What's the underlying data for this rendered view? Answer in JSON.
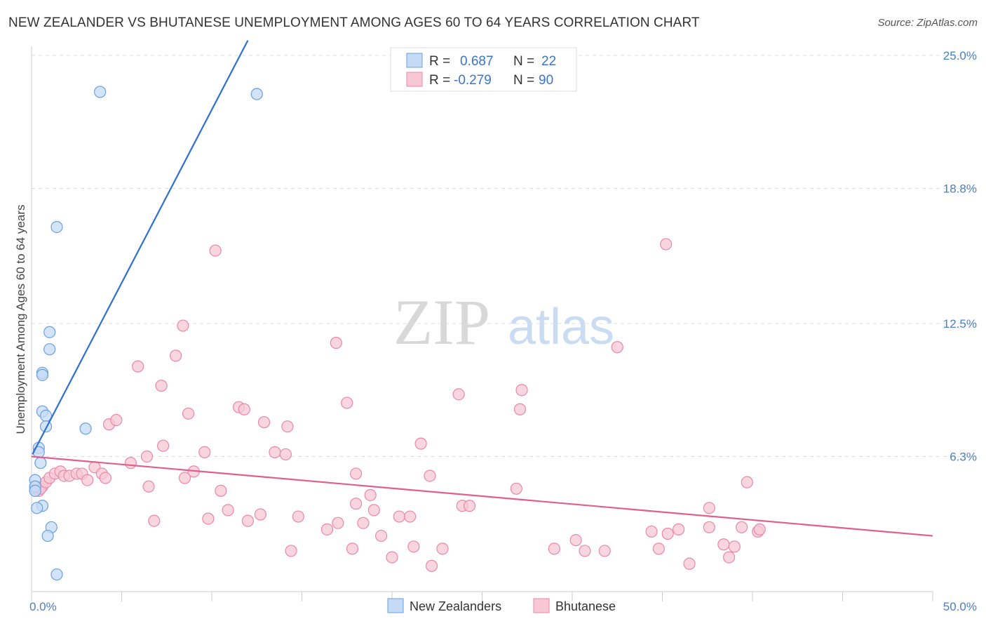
{
  "header": {
    "title": "NEW ZEALANDER VS BHUTANESE UNEMPLOYMENT AMONG AGES 60 TO 64 YEARS CORRELATION CHART",
    "source": "Source: ZipAtlas.com"
  },
  "watermark": {
    "zip": "ZIP",
    "atlas": "atlas"
  },
  "colors": {
    "blue": "#6a9fe0",
    "blue_fill": "#c5dbf5",
    "blue_line": "#2e6fcf",
    "pink": "#e888a8",
    "pink_fill": "#f7c7d6",
    "pink_line": "#e0608a",
    "grid": "#dddddd",
    "tick_label": "#4a7fc9"
  },
  "legend": {
    "rows": [
      {
        "r_label": "R =",
        "r_value": "0.687",
        "n_label": "N =",
        "n_value": "22"
      },
      {
        "r_label": "R =",
        "r_value": "-0.279",
        "n_label": "N =",
        "n_value": "90"
      }
    ]
  },
  "chart_data": {
    "type": "scatter",
    "title": "NEW ZEALANDER VS BHUTANESE UNEMPLOYMENT AMONG AGES 60 TO 64 YEARS CORRELATION CHART",
    "xlabel": "",
    "ylabel": "Unemployment Among Ages 60 to 64 years",
    "xlim": [
      0,
      50
    ],
    "ylim": [
      0,
      25
    ],
    "x_tick_labels": [
      "0.0%",
      "50.0%"
    ],
    "y_ticks": [
      6.3,
      12.5,
      18.8,
      25.0
    ],
    "y_tick_labels": [
      "6.3%",
      "12.5%",
      "18.8%",
      "25.0%"
    ],
    "legend_position": "top-center",
    "series": [
      {
        "name": "New Zealanders",
        "color": "#6a9fe0",
        "R": 0.687,
        "N": 22,
        "trend": [
          [
            0.05,
            6.4
          ],
          [
            12.0,
            25.7
          ]
        ],
        "points": [
          [
            3.8,
            23.3
          ],
          [
            12.5,
            23.2
          ],
          [
            1.4,
            17.0
          ],
          [
            1.0,
            12.1
          ],
          [
            1.0,
            11.3
          ],
          [
            0.6,
            10.2
          ],
          [
            0.6,
            10.1
          ],
          [
            0.6,
            8.4
          ],
          [
            0.8,
            8.2
          ],
          [
            0.8,
            7.7
          ],
          [
            3.0,
            7.6
          ],
          [
            0.4,
            6.7
          ],
          [
            0.4,
            6.5
          ],
          [
            0.5,
            6.0
          ],
          [
            0.2,
            5.2
          ],
          [
            0.2,
            4.9
          ],
          [
            0.2,
            4.7
          ],
          [
            0.6,
            4.0
          ],
          [
            0.3,
            3.9
          ],
          [
            1.1,
            3.0
          ],
          [
            0.9,
            2.6
          ],
          [
            1.4,
            0.8
          ]
        ]
      },
      {
        "name": "Bhutanese",
        "color": "#e888a8",
        "R": -0.279,
        "N": 90,
        "trend": [
          [
            0.0,
            6.3
          ],
          [
            50.0,
            2.6
          ]
        ],
        "points": [
          [
            0.2,
            4.8
          ],
          [
            0.4,
            4.7
          ],
          [
            0.6,
            4.9
          ],
          [
            0.5,
            4.8
          ],
          [
            0.8,
            5.1
          ],
          [
            1.0,
            5.3
          ],
          [
            1.3,
            5.5
          ],
          [
            1.6,
            5.6
          ],
          [
            1.8,
            5.4
          ],
          [
            2.1,
            5.4
          ],
          [
            2.5,
            5.5
          ],
          [
            2.8,
            5.5
          ],
          [
            3.1,
            5.2
          ],
          [
            3.5,
            5.8
          ],
          [
            3.9,
            5.5
          ],
          [
            4.1,
            5.3
          ],
          [
            4.3,
            7.8
          ],
          [
            4.7,
            8.0
          ],
          [
            5.5,
            6.0
          ],
          [
            5.9,
            10.5
          ],
          [
            6.4,
            6.3
          ],
          [
            6.5,
            4.9
          ],
          [
            6.8,
            3.3
          ],
          [
            7.2,
            9.6
          ],
          [
            7.3,
            6.8
          ],
          [
            8.0,
            11.0
          ],
          [
            8.4,
            12.4
          ],
          [
            8.5,
            5.3
          ],
          [
            8.7,
            8.3
          ],
          [
            9.0,
            5.6
          ],
          [
            9.6,
            6.5
          ],
          [
            9.8,
            3.4
          ],
          [
            10.2,
            15.9
          ],
          [
            10.5,
            4.7
          ],
          [
            10.9,
            3.8
          ],
          [
            11.5,
            8.6
          ],
          [
            11.8,
            8.5
          ],
          [
            12.0,
            3.3
          ],
          [
            12.7,
            3.6
          ],
          [
            12.9,
            7.9
          ],
          [
            13.5,
            6.5
          ],
          [
            14.2,
            7.7
          ],
          [
            14.1,
            6.4
          ],
          [
            14.4,
            1.9
          ],
          [
            14.8,
            3.5
          ],
          [
            16.4,
            2.9
          ],
          [
            16.9,
            11.6
          ],
          [
            17.0,
            3.2
          ],
          [
            17.5,
            8.8
          ],
          [
            17.8,
            2.0
          ],
          [
            18.0,
            4.1
          ],
          [
            18.0,
            5.5
          ],
          [
            18.4,
            3.2
          ],
          [
            18.8,
            4.5
          ],
          [
            19.0,
            3.8
          ],
          [
            19.4,
            2.6
          ],
          [
            20.0,
            1.6
          ],
          [
            20.4,
            3.5
          ],
          [
            21.0,
            3.5
          ],
          [
            21.2,
            2.1
          ],
          [
            21.6,
            6.9
          ],
          [
            22.1,
            5.4
          ],
          [
            22.2,
            1.2
          ],
          [
            22.8,
            2.0
          ],
          [
            23.7,
            9.2
          ],
          [
            23.9,
            4.0
          ],
          [
            24.3,
            4.0
          ],
          [
            26.9,
            4.8
          ],
          [
            27.1,
            8.5
          ],
          [
            27.2,
            9.4
          ],
          [
            29.0,
            2.0
          ],
          [
            30.2,
            2.4
          ],
          [
            30.7,
            1.9
          ],
          [
            31.8,
            1.9
          ],
          [
            32.5,
            11.4
          ],
          [
            34.4,
            2.8
          ],
          [
            34.8,
            2.0
          ],
          [
            35.2,
            16.2
          ],
          [
            35.3,
            2.7
          ],
          [
            35.9,
            2.9
          ],
          [
            36.5,
            1.3
          ],
          [
            37.6,
            3.0
          ],
          [
            37.6,
            3.9
          ],
          [
            38.4,
            2.2
          ],
          [
            38.7,
            1.6
          ],
          [
            39.0,
            2.1
          ],
          [
            39.4,
            3.0
          ],
          [
            39.7,
            5.1
          ],
          [
            40.3,
            2.8
          ],
          [
            40.4,
            2.9
          ]
        ]
      }
    ]
  },
  "bottom_legend": {
    "items": [
      "New Zealanders",
      "Bhutanese"
    ]
  }
}
